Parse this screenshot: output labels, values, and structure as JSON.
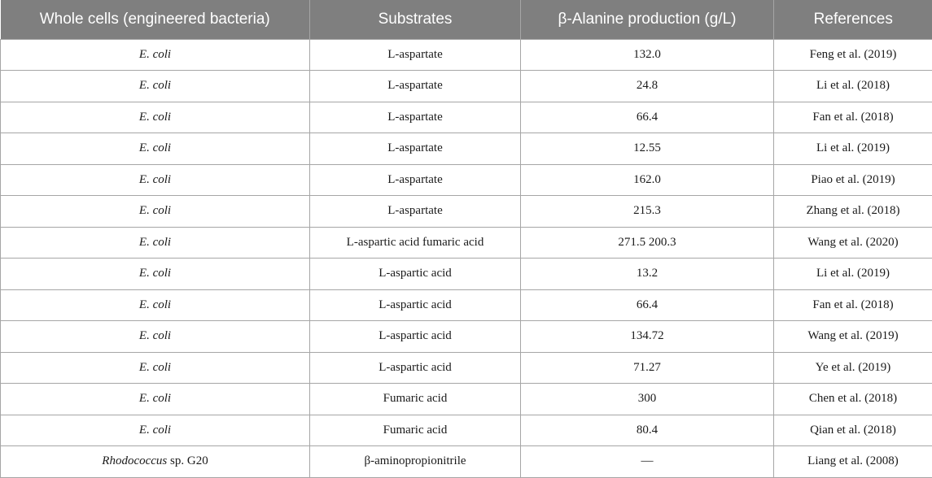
{
  "table": {
    "headers": [
      "Whole cells (engineered bacteria)",
      "Substrates",
      "β-Alanine production (g/L)",
      "References"
    ],
    "rows": [
      {
        "organism_italic": "E. coli",
        "organism_rest": "",
        "substrate": "L-aspartate",
        "production": "132.0",
        "reference": "Feng et al. (2019)"
      },
      {
        "organism_italic": "E. coli",
        "organism_rest": "",
        "substrate": "L-aspartate",
        "production": "24.8",
        "reference": "Li et al. (2018)"
      },
      {
        "organism_italic": "E. coli",
        "organism_rest": "",
        "substrate": "L-aspartate",
        "production": "66.4",
        "reference": "Fan et al. (2018)"
      },
      {
        "organism_italic": "E. coli",
        "organism_rest": "",
        "substrate": "L-aspartate",
        "production": "12.55",
        "reference": "Li et al. (2019)"
      },
      {
        "organism_italic": "E. coli",
        "organism_rest": "",
        "substrate": "L-aspartate",
        "production": "162.0",
        "reference": "Piao et al. (2019)"
      },
      {
        "organism_italic": "E. coli",
        "organism_rest": "",
        "substrate": "L-aspartate",
        "production": "215.3",
        "reference": "Zhang et al. (2018)"
      },
      {
        "organism_italic": "E. coli",
        "organism_rest": "",
        "substrate": "L-aspartic acid fumaric acid",
        "production": "271.5 200.3",
        "reference": "Wang et al. (2020)"
      },
      {
        "organism_italic": "E. coli",
        "organism_rest": "",
        "substrate": "L-aspartic acid",
        "production": "13.2",
        "reference": "Li et al. (2019)"
      },
      {
        "organism_italic": "E. coli",
        "organism_rest": "",
        "substrate": "L-aspartic acid",
        "production": "66.4",
        "reference": "Fan et al. (2018)"
      },
      {
        "organism_italic": "E. coli",
        "organism_rest": "",
        "substrate": "L-aspartic acid",
        "production": "134.72",
        "reference": "Wang et al. (2019)"
      },
      {
        "organism_italic": "E. coli",
        "organism_rest": "",
        "substrate": "L-aspartic acid",
        "production": "71.27",
        "reference": "Ye et al. (2019)"
      },
      {
        "organism_italic": "E. coli",
        "organism_rest": "",
        "substrate": "Fumaric acid",
        "production": "300",
        "reference": "Chen et al. (2018)"
      },
      {
        "organism_italic": "E. coli",
        "organism_rest": "",
        "substrate": "Fumaric acid",
        "production": "80.4",
        "reference": "Qian et al. (2018)"
      },
      {
        "organism_italic": "Rhodococcus",
        "organism_rest": " sp. G20",
        "substrate": "β-aminopropionitrile",
        "production": "—",
        "reference": "Liang et al. (2008)"
      }
    ]
  }
}
